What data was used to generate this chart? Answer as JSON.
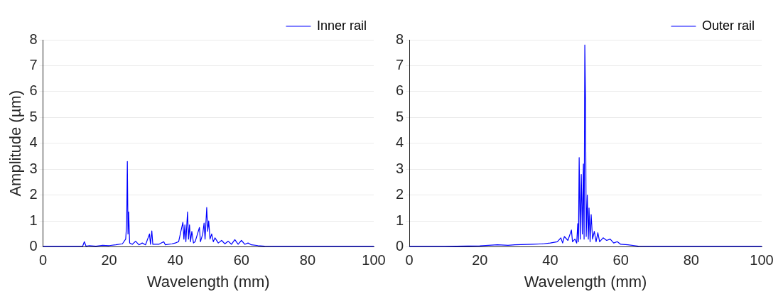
{
  "chart_data": [
    {
      "type": "line",
      "xlabel": "Wavelength (mm)",
      "ylabel": "Amplitude (µm)",
      "xlim": [
        0,
        100
      ],
      "xticks": [
        0,
        20,
        40,
        60,
        80,
        100
      ],
      "ylim": [
        0,
        8
      ],
      "yticks": [
        0,
        1,
        2,
        3,
        4,
        5,
        6,
        7,
        8
      ],
      "grid": "y",
      "legend": "top right",
      "marker": "none",
      "series": [
        {
          "name": "Inner rail",
          "color": "#0000ff",
          "x": [
            0,
            2,
            5,
            8,
            10,
            12,
            12.5,
            13,
            14,
            16,
            18,
            20,
            22,
            24,
            25,
            25.3,
            25.5,
            25.7,
            25.9,
            26.2,
            27,
            28,
            29,
            30,
            31,
            32.2,
            32.5,
            32.9,
            33.2,
            35,
            36.5,
            37,
            39,
            40,
            41,
            42.3,
            42.6,
            42.9,
            43.2,
            43.7,
            44,
            44.3,
            44.6,
            45,
            45.5,
            46,
            47.3,
            47.6,
            48.3,
            48.7,
            49,
            49.5,
            49.8,
            50.1,
            50.5,
            51,
            51.5,
            52,
            53,
            54,
            55,
            56,
            57,
            58,
            59,
            60,
            61,
            62,
            63,
            65,
            67,
            70,
            80,
            85,
            100
          ],
          "values": [
            0.02,
            0.02,
            0.02,
            0.02,
            0.02,
            0.03,
            0.2,
            0.03,
            0.05,
            0.03,
            0.06,
            0.05,
            0.08,
            0.12,
            0.3,
            0.9,
            3.3,
            0.5,
            1.35,
            0.15,
            0.1,
            0.22,
            0.08,
            0.15,
            0.08,
            0.5,
            0.1,
            0.62,
            0.1,
            0.1,
            0.2,
            0.08,
            0.12,
            0.15,
            0.2,
            0.95,
            0.3,
            0.85,
            0.2,
            1.35,
            0.3,
            0.85,
            0.2,
            0.6,
            0.15,
            0.2,
            0.75,
            0.2,
            0.5,
            0.92,
            0.3,
            1.52,
            0.6,
            1,
            0.3,
            0.5,
            0.2,
            0.35,
            0.15,
            0.25,
            0.12,
            0.22,
            0.1,
            0.28,
            0.1,
            0.25,
            0.1,
            0.15,
            0.08,
            0.05,
            0.03,
            0.02,
            0.02,
            0.02,
            0.02
          ]
        }
      ]
    },
    {
      "type": "line",
      "xlabel": "Wavelength (mm)",
      "xlim": [
        0,
        100
      ],
      "xticks": [
        0,
        20,
        40,
        60,
        80,
        100
      ],
      "ylim": [
        0,
        8
      ],
      "yticks": [
        0,
        1,
        2,
        3,
        4,
        5,
        6,
        7,
        8
      ],
      "grid": "y",
      "legend": "top right",
      "marker": "none",
      "series": [
        {
          "name": "Outer rail",
          "color": "#0000ff",
          "x": [
            0,
            10,
            20,
            25,
            28,
            30,
            35,
            38,
            40,
            42,
            43,
            43.5,
            44,
            45,
            46,
            46.3,
            47,
            47.5,
            47.8,
            48,
            48.2,
            48.5,
            48.8,
            49.1,
            49.4,
            49.6,
            49.8,
            50,
            50.2,
            50.5,
            50.8,
            51,
            51.3,
            51.6,
            52,
            52.5,
            53,
            53.5,
            54,
            55,
            56,
            57,
            58,
            59,
            60,
            62,
            65,
            70,
            80,
            100
          ],
          "values": [
            0.02,
            0.02,
            0.04,
            0.08,
            0.06,
            0.08,
            0.1,
            0.12,
            0.15,
            0.2,
            0.35,
            0.15,
            0.4,
            0.25,
            0.65,
            0.2,
            0.3,
            0.15,
            0.9,
            0.2,
            3.45,
            0.3,
            2.8,
            0.5,
            3.2,
            0.3,
            7.8,
            5.65,
            0.4,
            2,
            0.3,
            1.5,
            0.2,
            1.25,
            0.3,
            0.6,
            0.2,
            0.55,
            0.2,
            0.35,
            0.25,
            0.3,
            0.15,
            0.2,
            0.1,
            0.08,
            0.03,
            0.02,
            0.02,
            0.02
          ]
        }
      ]
    }
  ]
}
